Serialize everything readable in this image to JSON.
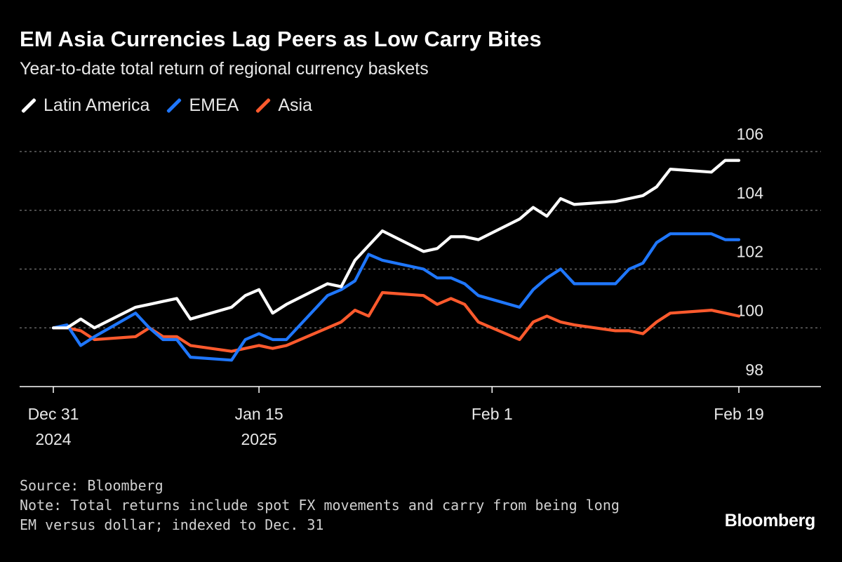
{
  "colors": {
    "background": "#000000",
    "grid": "#777777",
    "axis": "#ffffff",
    "text": "#e8e8e8"
  },
  "chart_data": {
    "type": "line",
    "title": "EM Asia Currencies Lag Peers as Low Carry Bites",
    "subtitle": "Year-to-date total return of regional currency baskets",
    "ylim": [
      98,
      106
    ],
    "yticks": [
      {
        "value": 98,
        "label": "98"
      },
      {
        "value": 100,
        "label": "100"
      },
      {
        "value": 102,
        "label": "102"
      },
      {
        "value": 104,
        "label": "104"
      },
      {
        "value": 106,
        "label": "106"
      }
    ],
    "xlim": [
      "2024-12-31",
      "2025-02-24"
    ],
    "xticks": [
      {
        "date": "2024-12-31",
        "line1": "Dec 31",
        "line2": "2024"
      },
      {
        "date": "2025-01-15",
        "line1": "Jan 15",
        "line2": "2025"
      },
      {
        "date": "2025-02-01",
        "line1": "Feb 1",
        "line2": ""
      },
      {
        "date": "2025-02-19",
        "line1": "Feb 19",
        "line2": ""
      }
    ],
    "grid": true,
    "legend_position": "top-left",
    "series": [
      {
        "name": "Latin America",
        "color": "#ffffff",
        "points": [
          [
            "2024-12-31",
            100.0
          ],
          [
            "2025-01-01",
            100.0
          ],
          [
            "2025-01-02",
            100.3
          ],
          [
            "2025-01-03",
            100.0
          ],
          [
            "2025-01-06",
            100.7
          ],
          [
            "2025-01-07",
            100.8
          ],
          [
            "2025-01-08",
            100.9
          ],
          [
            "2025-01-09",
            101.0
          ],
          [
            "2025-01-10",
            100.3
          ],
          [
            "2025-01-13",
            100.7
          ],
          [
            "2025-01-14",
            101.1
          ],
          [
            "2025-01-15",
            101.3
          ],
          [
            "2025-01-16",
            100.5
          ],
          [
            "2025-01-17",
            100.8
          ],
          [
            "2025-01-20",
            101.5
          ],
          [
            "2025-01-21",
            101.4
          ],
          [
            "2025-01-22",
            102.3
          ],
          [
            "2025-01-23",
            102.8
          ],
          [
            "2025-01-24",
            103.3
          ],
          [
            "2025-01-27",
            102.6
          ],
          [
            "2025-01-28",
            102.7
          ],
          [
            "2025-01-29",
            103.1
          ],
          [
            "2025-01-30",
            103.1
          ],
          [
            "2025-01-31",
            103.0
          ],
          [
            "2025-02-03",
            103.7
          ],
          [
            "2025-02-04",
            104.1
          ],
          [
            "2025-02-05",
            103.8
          ],
          [
            "2025-02-06",
            104.4
          ],
          [
            "2025-02-07",
            104.2
          ],
          [
            "2025-02-10",
            104.3
          ],
          [
            "2025-02-11",
            104.4
          ],
          [
            "2025-02-12",
            104.5
          ],
          [
            "2025-02-13",
            104.8
          ],
          [
            "2025-02-14",
            105.4
          ],
          [
            "2025-02-17",
            105.3
          ],
          [
            "2025-02-18",
            105.7
          ],
          [
            "2025-02-19",
            105.7
          ]
        ]
      },
      {
        "name": "EMEA",
        "color": "#1f77ff",
        "points": [
          [
            "2024-12-31",
            100.0
          ],
          [
            "2025-01-01",
            100.1
          ],
          [
            "2025-01-02",
            99.4
          ],
          [
            "2025-01-03",
            99.7
          ],
          [
            "2025-01-06",
            100.5
          ],
          [
            "2025-01-07",
            100.0
          ],
          [
            "2025-01-08",
            99.6
          ],
          [
            "2025-01-09",
            99.6
          ],
          [
            "2025-01-10",
            99.0
          ],
          [
            "2025-01-13",
            98.9
          ],
          [
            "2025-01-14",
            99.6
          ],
          [
            "2025-01-15",
            99.8
          ],
          [
            "2025-01-16",
            99.6
          ],
          [
            "2025-01-17",
            99.6
          ],
          [
            "2025-01-20",
            101.1
          ],
          [
            "2025-01-21",
            101.3
          ],
          [
            "2025-01-22",
            101.6
          ],
          [
            "2025-01-23",
            102.5
          ],
          [
            "2025-01-24",
            102.3
          ],
          [
            "2025-01-27",
            102.0
          ],
          [
            "2025-01-28",
            101.7
          ],
          [
            "2025-01-29",
            101.7
          ],
          [
            "2025-01-30",
            101.5
          ],
          [
            "2025-01-31",
            101.1
          ],
          [
            "2025-02-03",
            100.7
          ],
          [
            "2025-02-04",
            101.3
          ],
          [
            "2025-02-05",
            101.7
          ],
          [
            "2025-02-06",
            102.0
          ],
          [
            "2025-02-07",
            101.5
          ],
          [
            "2025-02-10",
            101.5
          ],
          [
            "2025-02-11",
            102.0
          ],
          [
            "2025-02-12",
            102.2
          ],
          [
            "2025-02-13",
            102.9
          ],
          [
            "2025-02-14",
            103.2
          ],
          [
            "2025-02-17",
            103.2
          ],
          [
            "2025-02-18",
            103.0
          ],
          [
            "2025-02-19",
            103.0
          ]
        ]
      },
      {
        "name": "Asia",
        "color": "#ff5a2d",
        "points": [
          [
            "2024-12-31",
            100.0
          ],
          [
            "2025-01-01",
            100.0
          ],
          [
            "2025-01-02",
            99.9
          ],
          [
            "2025-01-03",
            99.6
          ],
          [
            "2025-01-06",
            99.7
          ],
          [
            "2025-01-07",
            100.0
          ],
          [
            "2025-01-08",
            99.7
          ],
          [
            "2025-01-09",
            99.7
          ],
          [
            "2025-01-10",
            99.4
          ],
          [
            "2025-01-13",
            99.2
          ],
          [
            "2025-01-14",
            99.3
          ],
          [
            "2025-01-15",
            99.4
          ],
          [
            "2025-01-16",
            99.3
          ],
          [
            "2025-01-17",
            99.4
          ],
          [
            "2025-01-20",
            100.0
          ],
          [
            "2025-01-21",
            100.2
          ],
          [
            "2025-01-22",
            100.6
          ],
          [
            "2025-01-23",
            100.4
          ],
          [
            "2025-01-24",
            101.2
          ],
          [
            "2025-01-27",
            101.1
          ],
          [
            "2025-01-28",
            100.8
          ],
          [
            "2025-01-29",
            101.0
          ],
          [
            "2025-01-30",
            100.8
          ],
          [
            "2025-01-31",
            100.2
          ],
          [
            "2025-02-03",
            99.6
          ],
          [
            "2025-02-04",
            100.2
          ],
          [
            "2025-02-05",
            100.4
          ],
          [
            "2025-02-06",
            100.2
          ],
          [
            "2025-02-07",
            100.1
          ],
          [
            "2025-02-10",
            99.9
          ],
          [
            "2025-02-11",
            99.9
          ],
          [
            "2025-02-12",
            99.8
          ],
          [
            "2025-02-13",
            100.2
          ],
          [
            "2025-02-14",
            100.5
          ],
          [
            "2025-02-17",
            100.6
          ],
          [
            "2025-02-18",
            100.5
          ],
          [
            "2025-02-19",
            100.4
          ]
        ]
      }
    ]
  },
  "footer": {
    "source": "Source: Bloomberg",
    "note_line1": "Note: Total returns include spot FX movements and carry from being long",
    "note_line2": "EM versus dollar; indexed to Dec. 31"
  },
  "brand": "Bloomberg"
}
